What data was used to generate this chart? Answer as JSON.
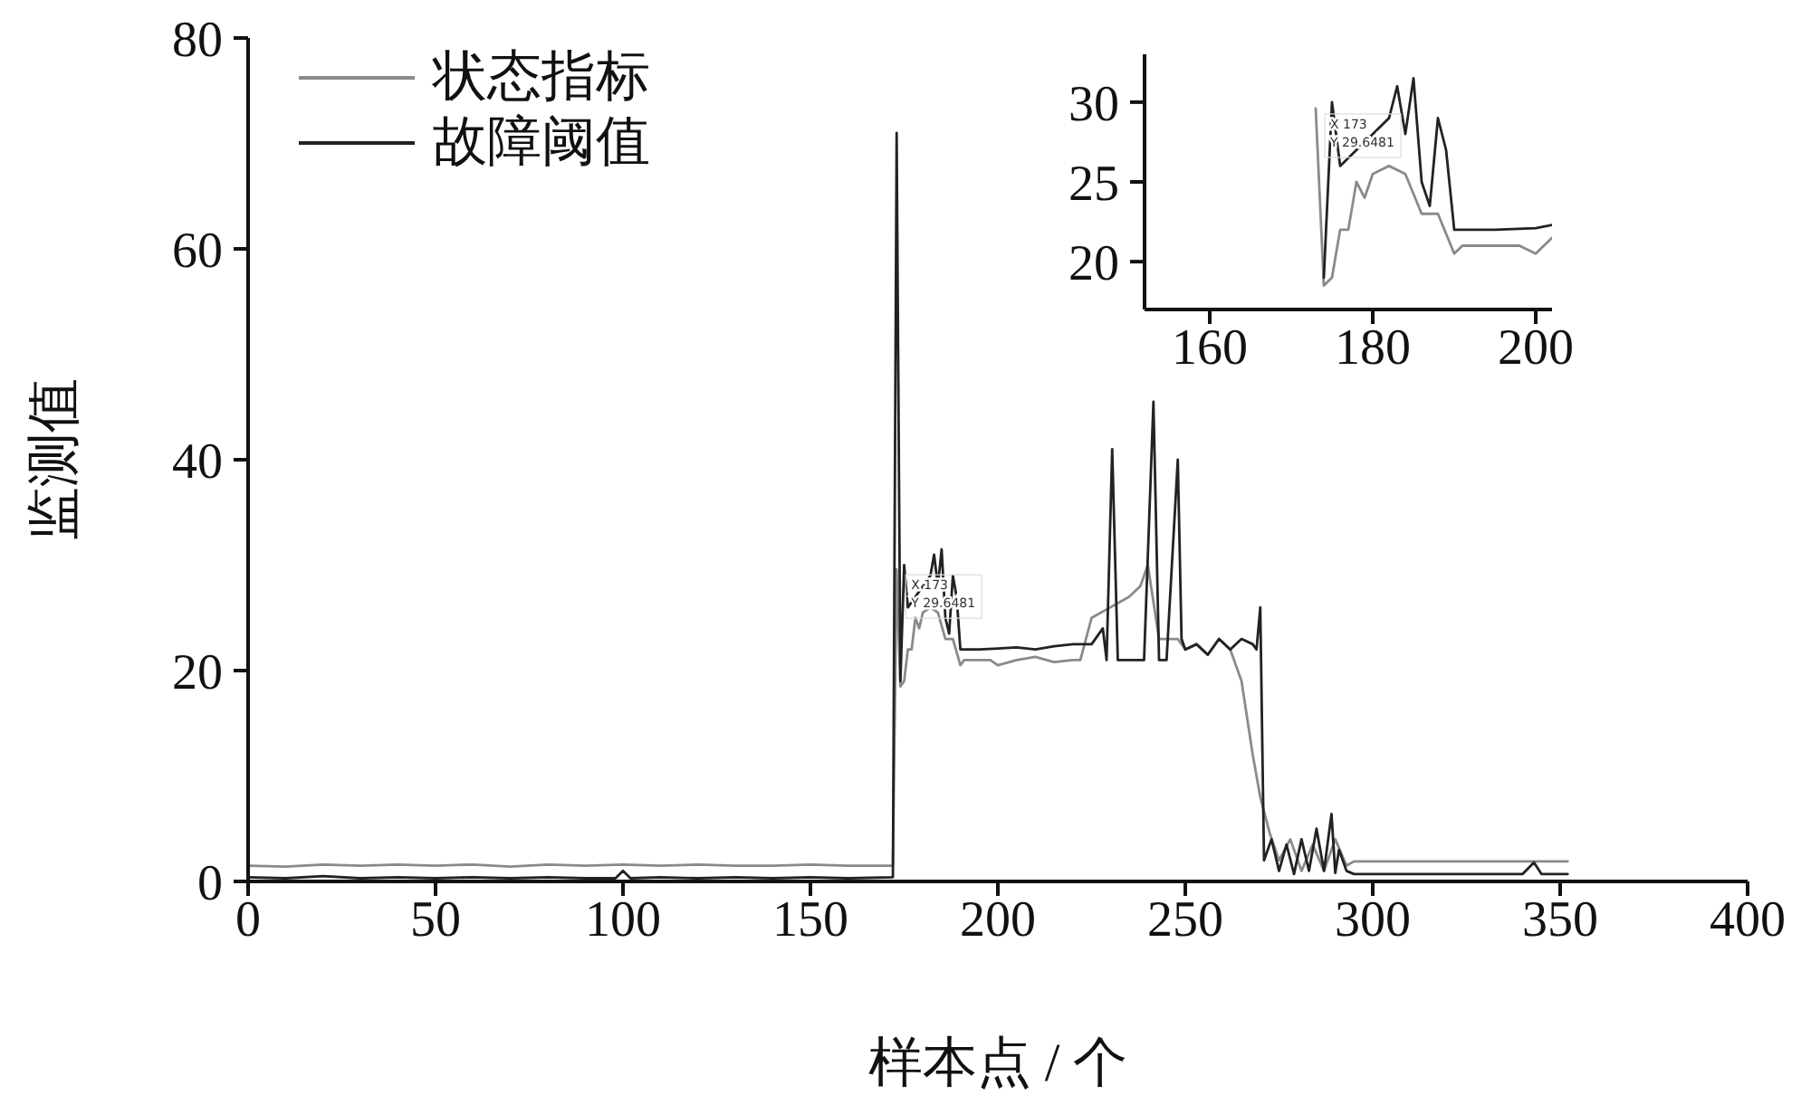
{
  "chart_data": [
    {
      "type": "line",
      "xlabel": "样本点 / 个",
      "ylabel": "监测值",
      "xlim": [
        0,
        400
      ],
      "xticks": [
        0,
        50,
        100,
        150,
        200,
        250,
        300,
        350,
        400
      ],
      "ylim": [
        0,
        80
      ],
      "yticks": [
        0,
        20,
        40,
        60,
        80
      ],
      "legend": "top left",
      "grid": false,
      "annotations": [
        {
          "text": "X 173\nY 29.6481",
          "x": 173,
          "y": 29.6
        }
      ],
      "series": [
        {
          "name": "状态指标",
          "color": "#8a8a8a",
          "x": [
            0,
            10,
            20,
            30,
            40,
            50,
            60,
            70,
            80,
            90,
            100,
            110,
            120,
            130,
            140,
            150,
            160,
            172,
            173,
            174,
            175,
            176,
            177,
            178,
            179,
            180,
            182,
            184,
            186,
            188,
            190,
            191,
            195,
            198,
            200,
            205,
            210,
            215,
            220,
            222,
            225,
            230,
            235,
            238,
            240,
            243,
            248,
            250,
            253,
            256,
            259,
            262,
            265,
            268,
            270,
            272.5,
            275,
            278,
            281,
            284,
            287,
            290,
            293,
            295,
            300,
            310,
            320,
            330,
            340,
            350,
            352
          ],
          "values": [
            1.5,
            1.4,
            1.6,
            1.5,
            1.6,
            1.5,
            1.6,
            1.4,
            1.6,
            1.5,
            1.6,
            1.5,
            1.6,
            1.5,
            1.5,
            1.6,
            1.5,
            1.5,
            29.6,
            18.5,
            19,
            22,
            22,
            25,
            24,
            25.5,
            26,
            25.5,
            23,
            23,
            20.5,
            21,
            21,
            21,
            20.5,
            21,
            21.3,
            20.8,
            21,
            21,
            25,
            26,
            27,
            28,
            30,
            23,
            23,
            22,
            22.5,
            21.5,
            23,
            22,
            19,
            12,
            8,
            4.6,
            2,
            4,
            1,
            3.5,
            1,
            4,
            1.5,
            1.9,
            1.9,
            1.9,
            1.9,
            1.9,
            1.9,
            1.9,
            1.9
          ]
        },
        {
          "name": "故障阈值",
          "color": "#222222",
          "x": [
            0,
            10,
            20,
            30,
            40,
            50,
            60,
            70,
            80,
            90,
            98,
            100,
            102,
            110,
            120,
            130,
            140,
            150,
            160,
            172,
            173,
            174,
            175,
            176,
            178,
            180,
            182,
            183,
            184,
            185,
            186,
            187,
            188,
            189,
            190,
            195,
            200,
            205,
            210,
            215,
            220,
            225,
            228,
            229,
            230.5,
            232,
            235,
            239,
            241.5,
            243,
            245,
            248,
            249,
            250,
            253,
            256,
            259,
            262,
            265,
            268,
            269,
            270,
            271,
            273,
            275,
            277,
            279,
            281,
            283,
            285,
            287,
            289,
            290,
            291,
            293,
            295,
            300,
            310,
            320,
            330,
            340,
            343,
            345,
            350,
            352
          ],
          "values": [
            0.4,
            0.3,
            0.5,
            0.3,
            0.4,
            0.3,
            0.4,
            0.3,
            0.4,
            0.3,
            0.3,
            1.0,
            0.3,
            0.4,
            0.3,
            0.4,
            0.3,
            0.4,
            0.3,
            0.4,
            71,
            19,
            30,
            26,
            27,
            28,
            29,
            31,
            28,
            31.5,
            25,
            23.5,
            29,
            27,
            22,
            22,
            22.1,
            22.2,
            22,
            22.3,
            22.5,
            22.5,
            24,
            21,
            41,
            21,
            21,
            21,
            45.5,
            21,
            21,
            40,
            23,
            22,
            22.5,
            21.5,
            23,
            22,
            23,
            22.5,
            22,
            26,
            2,
            4,
            1,
            3.5,
            0.7,
            4,
            1,
            5,
            1,
            6.4,
            0.8,
            3,
            1,
            0.7,
            0.7,
            0.7,
            0.7,
            0.7,
            0.7,
            1.8,
            0.7,
            0.7,
            0.7
          ]
        }
      ]
    },
    {
      "type": "line",
      "xlim": [
        152,
        202
      ],
      "xticks": [
        160,
        180,
        200
      ],
      "ylim": [
        17,
        33
      ],
      "yticks": [
        20,
        25,
        30
      ],
      "grid": false,
      "annotations": [
        {
          "text": "X 173\nY 29.6481",
          "x": 173,
          "y": 29.6
        }
      ],
      "series": [
        {
          "color": "#8a8a8a",
          "x": [
            173,
            174,
            175,
            176,
            177,
            178,
            179,
            180,
            182,
            184,
            186,
            188,
            190,
            191,
            195,
            198,
            200,
            202
          ],
          "values": [
            29.6,
            18.5,
            19,
            22,
            22,
            25,
            24,
            25.5,
            26,
            25.5,
            23,
            23,
            20.5,
            21,
            21,
            21,
            20.5,
            21.5
          ]
        },
        {
          "color": "#222222",
          "x": [
            174,
            175,
            176,
            178,
            180,
            182,
            183,
            184,
            185,
            186,
            187,
            188,
            189,
            190,
            195,
            200,
            202
          ],
          "values": [
            19,
            30,
            26,
            27,
            28,
            29,
            31,
            28,
            31.5,
            25,
            23.5,
            29,
            27,
            22,
            22,
            22.1,
            22.3
          ]
        }
      ]
    }
  ]
}
